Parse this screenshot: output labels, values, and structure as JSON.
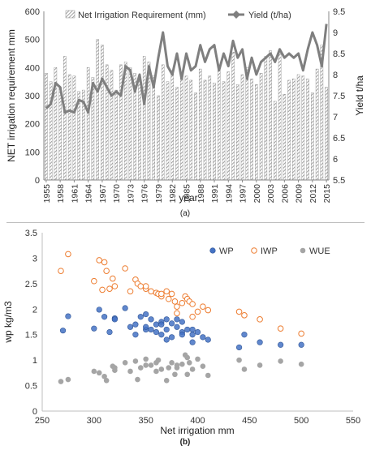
{
  "chart_data": [
    {
      "type": "bar+line",
      "panel_label": "(a)",
      "xlabel": "year",
      "ylabel_left": "NET irrigation requirement  mm",
      "ylabel_right": "Yield t/ha",
      "ylim_left": [
        0,
        600
      ],
      "ylim_right": [
        5.5,
        9.5
      ],
      "yticks_left": [
        "0",
        "100",
        "200",
        "300",
        "400",
        "500",
        "600"
      ],
      "yticks_right": [
        "5.5",
        "6",
        "6.5",
        "7",
        "7.5",
        "8",
        "8.5",
        "9",
        "9.5"
      ],
      "xticks": [
        "1955",
        "1958",
        "1961",
        "1964",
        "1967",
        "1970",
        "1973",
        "1976",
        "1979",
        "1982",
        "1985",
        "1988",
        "1991",
        "1994",
        "1997",
        "2000",
        "2003",
        "2006",
        "2009",
        "2012",
        "2015"
      ],
      "legend_position": "top",
      "series": [
        {
          "name": "Net Irrigation Requirement (mm)",
          "axis": "left",
          "x": [
            1955,
            1956,
            1957,
            1958,
            1959,
            1960,
            1961,
            1962,
            1963,
            1964,
            1965,
            1966,
            1967,
            1968,
            1969,
            1970,
            1971,
            1972,
            1973,
            1974,
            1975,
            1976,
            1977,
            1978,
            1979,
            1980,
            1981,
            1982,
            1983,
            1984,
            1985,
            1986,
            1987,
            1988,
            1989,
            1990,
            1991,
            1992,
            1993,
            1994,
            1995,
            1996,
            1997,
            1998,
            1999,
            2000,
            2001,
            2002,
            2003,
            2004,
            2005,
            2006,
            2007,
            2008,
            2009,
            2010,
            2011,
            2012,
            2013,
            2014,
            2015
          ],
          "values": [
            380,
            350,
            400,
            330,
            440,
            375,
            370,
            315,
            320,
            400,
            365,
            500,
            480,
            410,
            390,
            320,
            410,
            420,
            400,
            380,
            365,
            440,
            420,
            370,
            300,
            410,
            350,
            390,
            330,
            380,
            370,
            355,
            310,
            395,
            355,
            370,
            345,
            390,
            350,
            385,
            455,
            340,
            375,
            400,
            360,
            340,
            380,
            440,
            460,
            280,
            450,
            305,
            355,
            360,
            375,
            370,
            360,
            310,
            395,
            480,
            330
          ],
          "color": "#999999"
        },
        {
          "name": "Yield (t/ha)",
          "axis": "right",
          "x": [
            1955,
            1956,
            1957,
            1958,
            1959,
            1960,
            1961,
            1962,
            1963,
            1964,
            1965,
            1966,
            1967,
            1968,
            1969,
            1970,
            1971,
            1972,
            1973,
            1974,
            1975,
            1976,
            1977,
            1978,
            1979,
            1980,
            1981,
            1982,
            1983,
            1984,
            1985,
            1986,
            1987,
            1988,
            1989,
            1990,
            1991,
            1992,
            1993,
            1994,
            1995,
            1996,
            1997,
            1998,
            1999,
            2000,
            2001,
            2002,
            2003,
            2004,
            2005,
            2006,
            2007,
            2008,
            2009,
            2010,
            2011,
            2012,
            2013,
            2014,
            2015
          ],
          "values": [
            7.2,
            7.3,
            7.8,
            7.7,
            7.1,
            7.15,
            7.1,
            7.4,
            7.35,
            7.1,
            7.8,
            7.6,
            7.9,
            7.7,
            7.5,
            7.6,
            7.5,
            8.2,
            8.1,
            7.6,
            8.0,
            7.3,
            8.2,
            7.7,
            8.4,
            9.0,
            8.2,
            8.0,
            8.5,
            7.9,
            8.5,
            8.1,
            8.2,
            8.7,
            8.3,
            8.6,
            8.7,
            8.1,
            8.5,
            8.2,
            8.8,
            8.4,
            8.6,
            7.9,
            8.4,
            8.0,
            8.3,
            8.4,
            8.5,
            8.3,
            8.6,
            8.4,
            8.5,
            8.4,
            8.5,
            8.1,
            8.6,
            9.0,
            8.7,
            8.2,
            9.2
          ],
          "color": "#7f7f7f"
        }
      ]
    },
    {
      "type": "scatter",
      "panel_label": "(b)",
      "xlabel": "Net irrigation  mm",
      "ylabel": "wp  kg/m3",
      "xlim": [
        250,
        550
      ],
      "ylim": [
        0,
        3.5
      ],
      "xticks": [
        "250",
        "300",
        "350",
        "400",
        "450",
        "500",
        "550"
      ],
      "yticks": [
        "0",
        "0.5",
        "1",
        "1.5",
        "2",
        "2.5",
        "3",
        "3.5"
      ],
      "legend_position": "top-right",
      "series": [
        {
          "name": "WP",
          "color": "#4472c4",
          "x": [
            270,
            275,
            305,
            310,
            300,
            315,
            320,
            320,
            330,
            335,
            345,
            350,
            340,
            355,
            360,
            350,
            365,
            370,
            375,
            365,
            370,
            380,
            385,
            390,
            385,
            395,
            400,
            410,
            380,
            375,
            360,
            340,
            350,
            355,
            365,
            395,
            405,
            440,
            445,
            460,
            480,
            500,
            370,
            385,
            395
          ],
          "y": [
            1.58,
            1.86,
            1.99,
            1.85,
            1.62,
            1.55,
            1.82,
            1.8,
            2.02,
            1.65,
            1.85,
            1.9,
            1.7,
            1.8,
            1.55,
            1.6,
            1.75,
            1.8,
            1.72,
            1.5,
            1.4,
            1.65,
            1.55,
            1.6,
            1.5,
            1.35,
            1.55,
            1.4,
            1.8,
            1.45,
            1.7,
            1.5,
            1.65,
            1.6,
            1.7,
            1.6,
            1.45,
            1.25,
            1.5,
            1.35,
            1.3,
            1.3,
            1.6,
            1.75,
            1.5
          ]
        },
        {
          "name": "IWP",
          "color": "#ed7d31",
          "x": [
            268,
            275,
            300,
            305,
            308,
            310,
            312,
            315,
            318,
            320,
            330,
            335,
            340,
            342,
            345,
            350,
            355,
            360,
            362,
            365,
            370,
            372,
            375,
            378,
            380,
            385,
            388,
            390,
            392,
            395,
            400,
            405,
            410,
            440,
            445,
            460,
            480,
            500,
            350,
            365,
            380,
            395
          ],
          "y": [
            2.75,
            3.08,
            2.55,
            2.96,
            2.38,
            2.92,
            2.75,
            2.4,
            2.6,
            2.45,
            2.8,
            2.35,
            2.58,
            2.5,
            2.45,
            2.4,
            2.35,
            2.32,
            2.3,
            2.25,
            2.35,
            2.2,
            2.3,
            2.15,
            2.05,
            2.12,
            2.25,
            2.2,
            2.15,
            2.1,
            1.95,
            2.05,
            1.98,
            1.95,
            1.88,
            1.8,
            1.62,
            1.52,
            2.45,
            2.3,
            1.92,
            1.85
          ]
        },
        {
          "name": "WUE",
          "color": "#a5a5a5",
          "x": [
            268,
            275,
            300,
            305,
            310,
            312,
            318,
            320,
            330,
            335,
            340,
            342,
            345,
            350,
            355,
            360,
            362,
            365,
            370,
            372,
            375,
            378,
            380,
            385,
            388,
            390,
            392,
            395,
            400,
            405,
            410,
            440,
            445,
            460,
            480,
            500,
            320,
            360,
            380,
            390,
            350
          ],
          "y": [
            0.58,
            0.62,
            0.78,
            0.75,
            0.68,
            0.6,
            0.88,
            0.8,
            0.95,
            0.78,
            0.98,
            0.62,
            0.85,
            1.02,
            0.9,
            0.78,
            1.0,
            0.82,
            0.6,
            0.85,
            0.95,
            0.72,
            0.85,
            0.92,
            1.1,
            0.72,
            0.95,
            0.82,
            1.02,
            0.88,
            0.7,
            1.0,
            0.82,
            0.9,
            0.98,
            0.92,
            0.85,
            0.95,
            0.9,
            1.05,
            0.9
          ]
        }
      ]
    }
  ]
}
